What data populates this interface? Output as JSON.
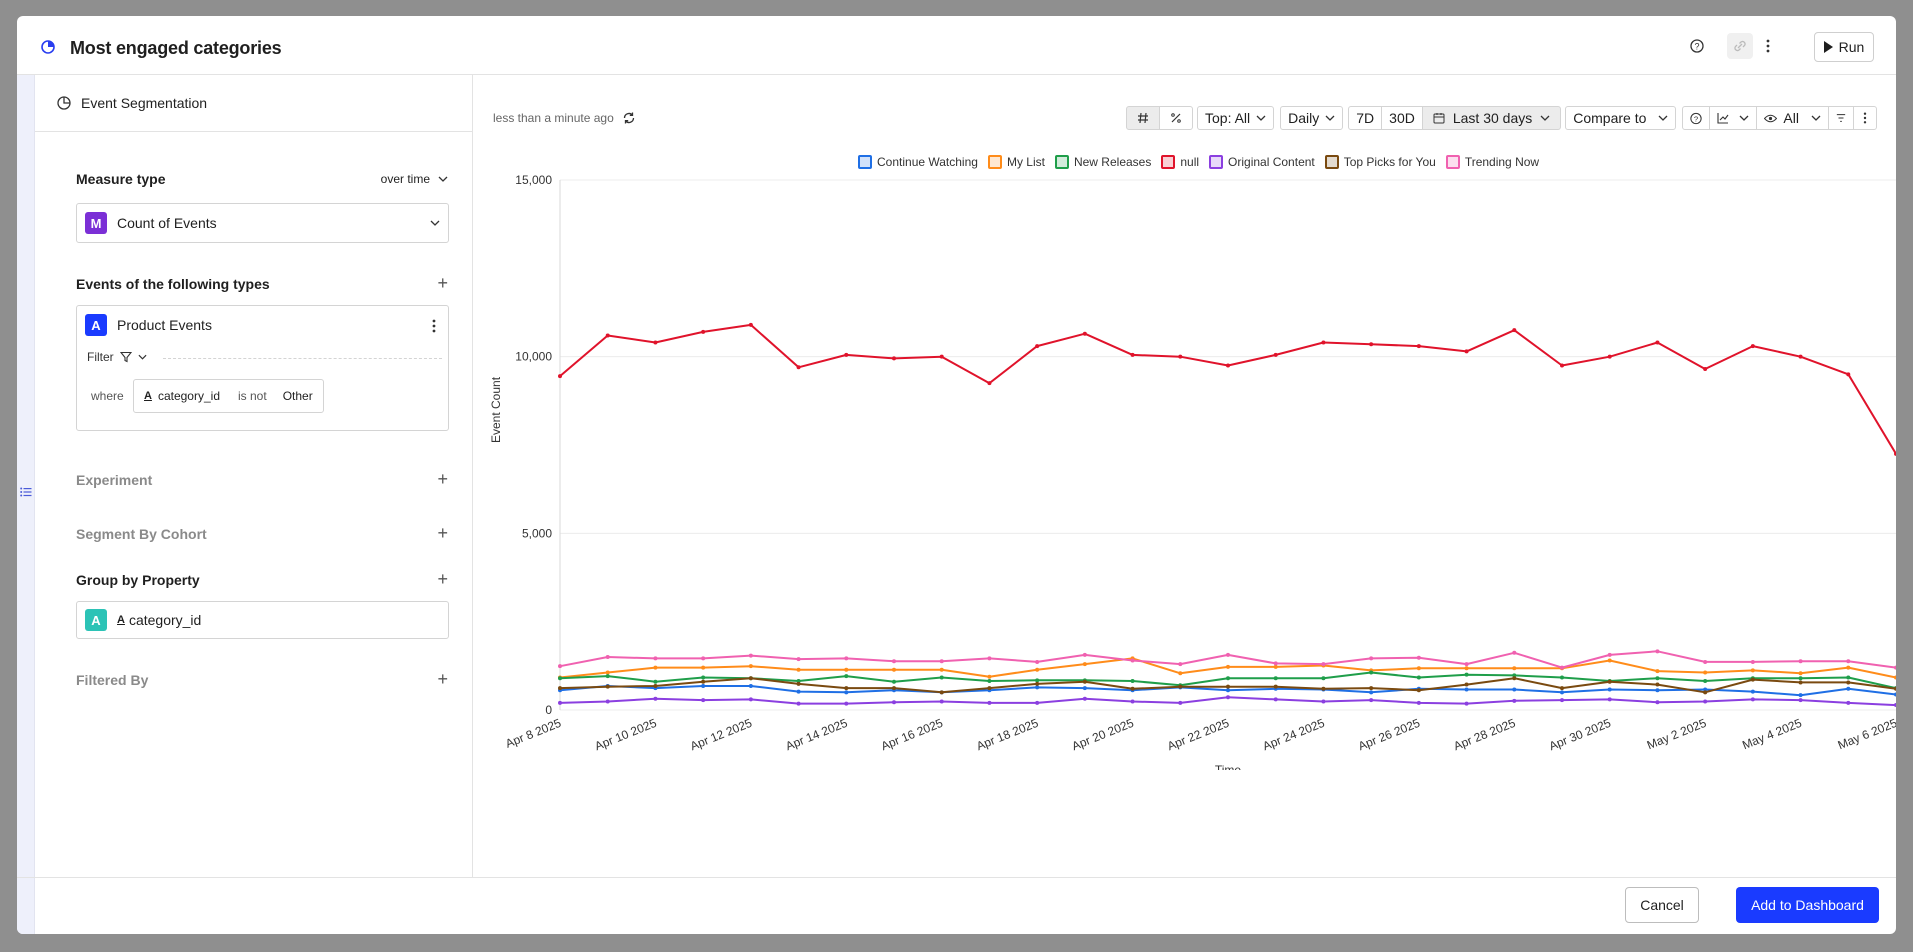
{
  "modal": {
    "title": "Most engaged categories",
    "run_label": "Run"
  },
  "left_panel": {
    "header": "Event Segmentation",
    "measure_type": {
      "label": "Measure type",
      "mode": "over time",
      "badge": "M",
      "value": "Count of Events"
    },
    "events": {
      "label": "Events of the following types",
      "badge": "A",
      "name": "Product Events",
      "filter_label": "Filter",
      "where": "where",
      "property": "category_id",
      "operator": "is not",
      "value": "Other"
    },
    "experiment": "Experiment",
    "segment_by_cohort": "Segment By Cohort",
    "group_by": {
      "label": "Group by Property",
      "badge": "A",
      "property": "category_id"
    },
    "filtered_by": "Filtered By"
  },
  "chart_toolbar": {
    "updated": "less than a minute ago",
    "top": "Top: All",
    "interval": "Daily",
    "range_7d": "7D",
    "range_30d": "30D",
    "date_range": "Last 30 days",
    "compare": "Compare to",
    "visibility": "All"
  },
  "footer": {
    "cancel": "Cancel",
    "add": "Add to Dashboard"
  },
  "colors": {
    "accent": "#1a3bff",
    "measure_badge": "#7b2fd6",
    "event_badge": "#1a3bff",
    "group_badge": "#2cc3b6"
  },
  "chart_data": {
    "type": "line",
    "xlabel": "Time",
    "ylabel": "Event Count",
    "ylim": [
      0,
      15000
    ],
    "yticks": [
      "0",
      "5,000",
      "10,000",
      "15,000"
    ],
    "xticks": [
      "Apr 8 2025",
      "Apr 10 2025",
      "Apr 12 2025",
      "Apr 14 2025",
      "Apr 16 2025",
      "Apr 18 2025",
      "Apr 20 2025",
      "Apr 22 2025",
      "Apr 24 2025",
      "Apr 26 2025",
      "Apr 28 2025",
      "Apr 30 2025",
      "May 2 2025",
      "May 4 2025",
      "May 6 2025"
    ],
    "x": [
      "Apr 8 2025",
      "Apr 9 2025",
      "Apr 10 2025",
      "Apr 11 2025",
      "Apr 12 2025",
      "Apr 13 2025",
      "Apr 14 2025",
      "Apr 15 2025",
      "Apr 16 2025",
      "Apr 17 2025",
      "Apr 18 2025",
      "Apr 19 2025",
      "Apr 20 2025",
      "Apr 21 2025",
      "Apr 22 2025",
      "Apr 23 2025",
      "Apr 24 2025",
      "Apr 25 2025",
      "Apr 26 2025",
      "Apr 27 2025",
      "Apr 28 2025",
      "Apr 29 2025",
      "Apr 30 2025",
      "May 1 2025",
      "May 2 2025",
      "May 3 2025",
      "May 4 2025",
      "May 5 2025",
      "May 6 2025"
    ],
    "legend_position": "top",
    "grid": true,
    "series": [
      {
        "name": "Continue Watching",
        "color": "#1f6fe5",
        "values": [
          560,
          680,
          620,
          680,
          680,
          520,
          500,
          560,
          500,
          560,
          640,
          620,
          560,
          640,
          560,
          600,
          580,
          500,
          600,
          580,
          580,
          500,
          580,
          560,
          580,
          520,
          420,
          600,
          440
        ]
      },
      {
        "name": "My List",
        "color": "#ff8c1a",
        "values": [
          920,
          1060,
          1200,
          1200,
          1240,
          1140,
          1140,
          1140,
          1140,
          940,
          1140,
          1300,
          1460,
          1040,
          1220,
          1220,
          1260,
          1120,
          1180,
          1180,
          1180,
          1180,
          1400,
          1100,
          1060,
          1120,
          1040,
          1200,
          920
        ]
      },
      {
        "name": "New Releases",
        "color": "#1f9e4a",
        "values": [
          900,
          960,
          800,
          920,
          900,
          820,
          960,
          800,
          920,
          820,
          840,
          840,
          820,
          700,
          900,
          900,
          900,
          1060,
          920,
          1000,
          980,
          920,
          820,
          900,
          820,
          900,
          900,
          920,
          620
        ]
      },
      {
        "name": "null",
        "color": "#e0132b",
        "values": [
          9450,
          10600,
          10400,
          10700,
          10900,
          9700,
          10050,
          9950,
          10000,
          9250,
          10300,
          10650,
          10050,
          10000,
          9750,
          10050,
          10400,
          10350,
          10300,
          10150,
          10750,
          9750,
          10000,
          10400,
          9650,
          10300,
          10000,
          9500,
          7250
        ]
      },
      {
        "name": "Original Content",
        "color": "#8b3fe0",
        "values": [
          200,
          240,
          320,
          280,
          300,
          180,
          180,
          220,
          240,
          200,
          200,
          320,
          240,
          200,
          360,
          300,
          240,
          280,
          200,
          180,
          260,
          280,
          300,
          220,
          240,
          300,
          280,
          200,
          140
        ]
      },
      {
        "name": "Top Picks for You",
        "color": "#7a4a10",
        "values": [
          620,
          660,
          680,
          800,
          900,
          740,
          620,
          620,
          500,
          620,
          740,
          800,
          600,
          660,
          660,
          660,
          600,
          620,
          560,
          720,
          900,
          620,
          800,
          720,
          500,
          860,
          780,
          780,
          600
        ]
      },
      {
        "name": "Trending Now",
        "color": "#f061b0",
        "values": [
          1240,
          1500,
          1460,
          1460,
          1540,
          1440,
          1460,
          1380,
          1380,
          1460,
          1360,
          1560,
          1400,
          1300,
          1560,
          1320,
          1300,
          1460,
          1480,
          1300,
          1620,
          1200,
          1560,
          1660,
          1360,
          1360,
          1380,
          1380,
          1200
        ]
      }
    ]
  }
}
